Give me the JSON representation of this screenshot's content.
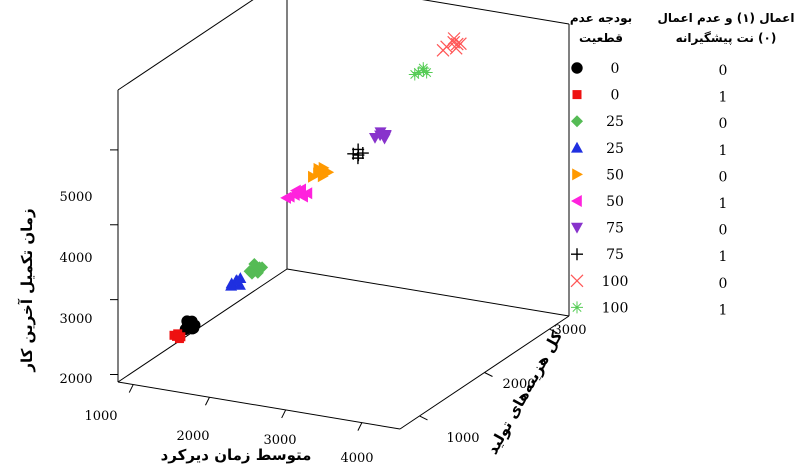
{
  "chart_data": {
    "type": "scatter",
    "projection": "3d",
    "xlabel": "متوسط زمان دیرکرد",
    "ylabel": "کل هزینه‌های تولید",
    "zlabel": "زمان تکمیل آخرین کار",
    "x_ticks": [
      "1000",
      "2000",
      "3000",
      "4000"
    ],
    "y_ticks": [
      "1000",
      "2000",
      "3000"
    ],
    "z_ticks": [
      "2000",
      "3000",
      "4000",
      "5000"
    ],
    "xlim": [
      800,
      4500
    ],
    "ylim": [
      700,
      3300
    ],
    "zlim": [
      1900,
      5800
    ],
    "grid": false,
    "legend_position": "right",
    "legend": {
      "col_budget_header": [
        "بودجه عدم",
        "قطعیت"
      ],
      "col_policy_header": [
        "اعمال (۱) و عدم اعمال",
        "(۰) نت پیشگیرانه"
      ]
    },
    "series": [
      {
        "budget": "0",
        "policy": "0",
        "marker": "circle",
        "color": "#000000",
        "points": [
          [
            1500,
            950,
            2630
          ],
          [
            1540,
            970,
            2680
          ],
          [
            1520,
            1000,
            2560
          ],
          [
            1480,
            940,
            2580
          ],
          [
            1560,
            990,
            2620
          ],
          [
            1510,
            930,
            2700
          ],
          [
            1570,
            960,
            2600
          ]
        ]
      },
      {
        "budget": "0",
        "policy": "1",
        "marker": "square",
        "color": "#ee1111",
        "points": [
          [
            1380,
            920,
            2480
          ],
          [
            1410,
            930,
            2450
          ],
          [
            1360,
            905,
            2500
          ],
          [
            1400,
            915,
            2520
          ],
          [
            1420,
            940,
            2470
          ]
        ]
      },
      {
        "budget": "25",
        "policy": "0",
        "marker": "diamond",
        "color": "#55bb55",
        "points": [
          [
            2100,
            1200,
            3310
          ],
          [
            2150,
            1230,
            3350
          ],
          [
            2200,
            1210,
            3300
          ],
          [
            2120,
            1250,
            3380
          ],
          [
            2180,
            1260,
            3340
          ],
          [
            2230,
            1240,
            3360
          ],
          [
            2140,
            1190,
            3290
          ]
        ]
      },
      {
        "budget": "25",
        "policy": "1",
        "marker": "triangle-up",
        "color": "#1f2fe0",
        "points": [
          [
            1950,
            1100,
            3180
          ],
          [
            2000,
            1120,
            3220
          ],
          [
            2050,
            1110,
            3170
          ],
          [
            1980,
            1130,
            3200
          ],
          [
            2030,
            1140,
            3240
          ],
          [
            1960,
            1080,
            3160
          ]
        ]
      },
      {
        "budget": "50",
        "policy": "0",
        "marker": "triangle-right",
        "color": "#ff9900",
        "points": [
          [
            2350,
            1880,
            4220
          ],
          [
            2400,
            1900,
            4260
          ],
          [
            2450,
            1920,
            4280
          ],
          [
            2380,
            1930,
            4300
          ],
          [
            2430,
            1950,
            4310
          ],
          [
            2500,
            1940,
            4270
          ],
          [
            2470,
            1890,
            4240
          ]
        ]
      },
      {
        "budget": "50",
        "policy": "1",
        "marker": "triangle-left",
        "color": "#ff22dd",
        "points": [
          [
            2150,
            1760,
            3990
          ],
          [
            2200,
            1780,
            4010
          ],
          [
            2260,
            1800,
            4020
          ],
          [
            2300,
            1790,
            4000
          ],
          [
            2180,
            1820,
            4040
          ],
          [
            2240,
            1830,
            4060
          ],
          [
            2330,
            1820,
            4030
          ],
          [
            2120,
            1740,
            3980
          ]
        ]
      },
      {
        "budget": "75",
        "policy": "0",
        "marker": "triangle-down",
        "color": "#8833cc",
        "points": [
          [
            2850,
            2250,
            4610
          ],
          [
            2900,
            2270,
            4640
          ],
          [
            2950,
            2280,
            4600
          ],
          [
            2880,
            2300,
            4660
          ],
          [
            2940,
            2310,
            4630
          ],
          [
            2980,
            2260,
            4650
          ]
        ]
      },
      {
        "budget": "75",
        "policy": "1",
        "marker": "plus",
        "color": "#000000",
        "points": [
          [
            2650,
            2150,
            4420
          ],
          [
            2700,
            2170,
            4400
          ],
          [
            2680,
            2190,
            4460
          ],
          [
            2720,
            2140,
            4380
          ],
          [
            2750,
            2180,
            4430
          ]
        ]
      },
      {
        "budget": "100",
        "policy": "0",
        "marker": "x",
        "color": "#ff5555",
        "points": [
          [
            3150,
            3000,
            5440
          ],
          [
            3200,
            3050,
            5480
          ],
          [
            3250,
            3030,
            5420
          ],
          [
            3180,
            3080,
            5510
          ],
          [
            3230,
            3070,
            5450
          ],
          [
            3280,
            3060,
            5470
          ],
          [
            3120,
            2980,
            5400
          ]
        ]
      },
      {
        "budget": "100",
        "policy": "1",
        "marker": "asterisk",
        "color": "#55cc55",
        "points": [
          [
            2950,
            2800,
            5180
          ],
          [
            3000,
            2820,
            5200
          ],
          [
            3050,
            2810,
            5190
          ],
          [
            2980,
            2840,
            5220
          ],
          [
            2920,
            2780,
            5160
          ]
        ]
      }
    ]
  }
}
